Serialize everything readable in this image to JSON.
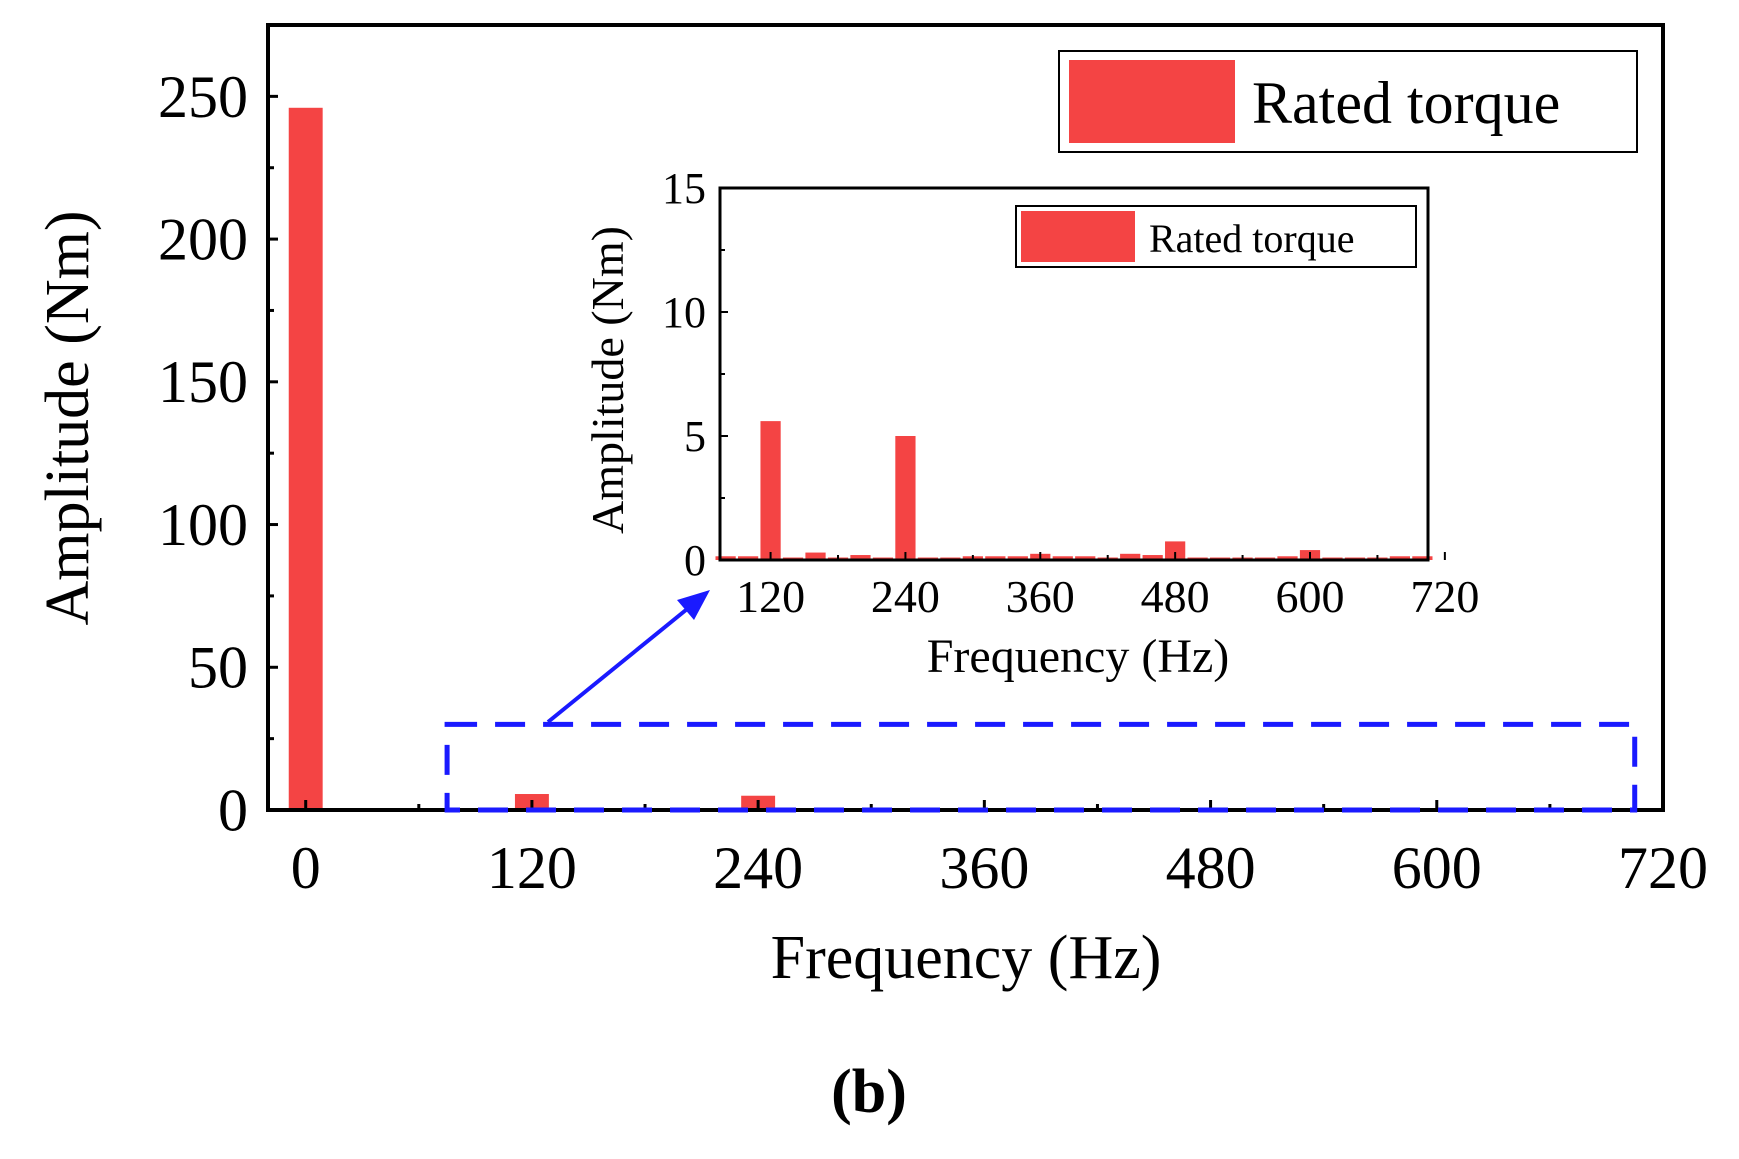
{
  "figure_label": "(b)",
  "colors": {
    "bar": "#f44444",
    "axis": "#000000",
    "callout": "#1a1aff"
  },
  "chart_data": [
    {
      "id": "main",
      "type": "bar",
      "title": "",
      "xlabel": "Frequency (Hz)",
      "ylabel": "Amplitude (Nm)",
      "xlim": [
        -20,
        720
      ],
      "ylim": [
        0,
        275
      ],
      "xticks": [
        0,
        120,
        240,
        360,
        480,
        600,
        720
      ],
      "yticks": [
        0,
        50,
        100,
        150,
        200,
        250
      ],
      "legend": {
        "label": "Rated torque",
        "position": "top-right"
      },
      "bar_width": 18,
      "series": [
        {
          "name": "Rated torque",
          "x": [
            0,
            20,
            40,
            60,
            80,
            100,
            120,
            140,
            160,
            180,
            200,
            220,
            240,
            260,
            280,
            300,
            320,
            340,
            360,
            380,
            400,
            420,
            440,
            460,
            480,
            500,
            520,
            540,
            560,
            580,
            600,
            620,
            640,
            660,
            680,
            700
          ],
          "values": [
            246,
            0.3,
            0.3,
            0.3,
            0.3,
            0.2,
            5.6,
            0.3,
            0.3,
            0.3,
            0.3,
            0.3,
            5,
            0.2,
            0.2,
            0.2,
            0.2,
            0.2,
            0.2,
            0.2,
            0.2,
            0.2,
            0.2,
            0.2,
            0.7,
            0.2,
            0.2,
            0.2,
            0.2,
            0.2,
            0.3,
            0.2,
            0.2,
            0.2,
            0.2,
            0.2
          ]
        }
      ],
      "zoom_region": {
        "x": [
          75,
          705
        ],
        "y": [
          0,
          30
        ]
      }
    },
    {
      "id": "inset",
      "type": "bar",
      "title": "",
      "xlabel": "Frequency (Hz)",
      "ylabel": "Amplitude (Nm)",
      "xlim": [
        75,
        705
      ],
      "ylim": [
        0,
        15
      ],
      "xticks": [
        120,
        240,
        360,
        480,
        600,
        720
      ],
      "yticks": [
        0,
        5,
        10,
        15
      ],
      "legend": {
        "label": "Rated torque",
        "position": "top-right"
      },
      "bar_width": 18,
      "series": [
        {
          "name": "Rated torque",
          "x": [
            80,
            100,
            120,
            140,
            160,
            180,
            200,
            220,
            240,
            260,
            280,
            300,
            320,
            340,
            360,
            380,
            400,
            420,
            440,
            460,
            480,
            500,
            520,
            540,
            560,
            580,
            600,
            620,
            640,
            660,
            680,
            700
          ],
          "values": [
            0.15,
            0.15,
            5.6,
            0.1,
            0.3,
            0.1,
            0.2,
            0.1,
            5,
            0.1,
            0.1,
            0.15,
            0.15,
            0.15,
            0.25,
            0.15,
            0.15,
            0.1,
            0.25,
            0.2,
            0.75,
            0.1,
            0.1,
            0.1,
            0.1,
            0.15,
            0.4,
            0.1,
            0.1,
            0.1,
            0.15,
            0.15
          ]
        }
      ]
    }
  ]
}
